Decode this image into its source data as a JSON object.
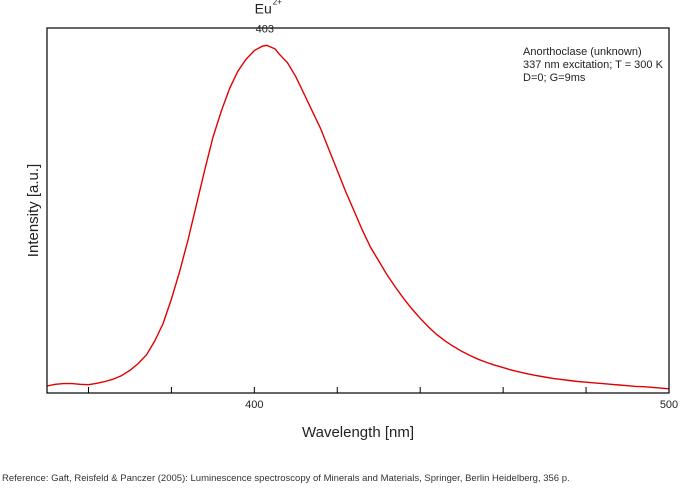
{
  "chart_data": {
    "type": "line",
    "xlabel": "Wavelength [nm]",
    "ylabel": "Intensity [a.u.]",
    "xlim": [
      350,
      500
    ],
    "ylim": [
      0,
      1.05
    ],
    "x_ticks": [
      {
        "value": 360,
        "label": ""
      },
      {
        "value": 380,
        "label": ""
      },
      {
        "value": 400,
        "label": "400"
      },
      {
        "value": 420,
        "label": ""
      },
      {
        "value": 440,
        "label": ""
      },
      {
        "value": 460,
        "label": ""
      },
      {
        "value": 480,
        "label": ""
      },
      {
        "value": 500,
        "label": "500"
      }
    ],
    "y_ticks": [],
    "grid": false,
    "legend": "none",
    "color": "#e00000",
    "annotations": {
      "sample": "Anorthoclase (unknown)",
      "conditions": "337 nm excitation; T = 300 K",
      "settings": "D=0; G=9ms",
      "peak_ion": "Eu",
      "peak_ion_charge": "2+",
      "peak_wavelength": "403"
    },
    "peak": {
      "x": 403,
      "y": 1.0
    },
    "series": [
      {
        "x": [
          350,
          352,
          354,
          356,
          358,
          360,
          362,
          364,
          366,
          368,
          370,
          372,
          374,
          376,
          378,
          380,
          382,
          384,
          386,
          388,
          390,
          392,
          394,
          396,
          398,
          400,
          401,
          402,
          403,
          404,
          405,
          406,
          408,
          410,
          412,
          414,
          416,
          418,
          420,
          422,
          424,
          426,
          428,
          430,
          432,
          434,
          436,
          438,
          440,
          442,
          444,
          446,
          448,
          450,
          452,
          454,
          456,
          458,
          460,
          462,
          464,
          466,
          468,
          470,
          472,
          474,
          476,
          478,
          480,
          482,
          484,
          486,
          488,
          490,
          492,
          494,
          496,
          498,
          500
        ],
        "y": [
          0.02,
          0.025,
          0.027,
          0.027,
          0.025,
          0.024,
          0.028,
          0.033,
          0.04,
          0.05,
          0.065,
          0.085,
          0.11,
          0.15,
          0.2,
          0.27,
          0.35,
          0.44,
          0.54,
          0.64,
          0.735,
          0.81,
          0.875,
          0.925,
          0.96,
          0.985,
          0.992,
          0.998,
          1.0,
          0.995,
          0.99,
          0.975,
          0.95,
          0.91,
          0.86,
          0.81,
          0.76,
          0.7,
          0.64,
          0.58,
          0.525,
          0.47,
          0.42,
          0.38,
          0.34,
          0.305,
          0.272,
          0.242,
          0.215,
          0.19,
          0.168,
          0.15,
          0.134,
          0.12,
          0.108,
          0.097,
          0.088,
          0.08,
          0.073,
          0.066,
          0.06,
          0.055,
          0.05,
          0.046,
          0.042,
          0.039,
          0.036,
          0.033,
          0.031,
          0.029,
          0.027,
          0.025,
          0.023,
          0.021,
          0.019,
          0.018,
          0.016,
          0.014,
          0.012
        ]
      }
    ]
  },
  "reference": "Reference: Gaft, Reisfeld & Panczer (2005): Luminescence spectroscopy of Minerals and Materials, Springer, Berlin Heidelberg, 356 p."
}
